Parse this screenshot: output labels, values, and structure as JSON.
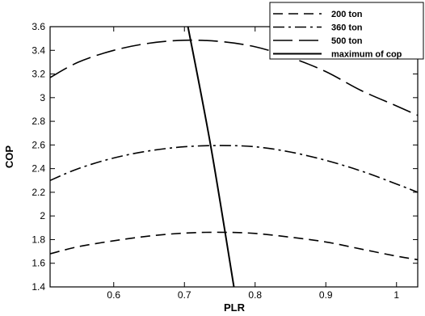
{
  "chart_data": {
    "type": "line",
    "title": "",
    "xlabel": "PLR",
    "ylabel": "COP",
    "xlim": [
      0.51,
      1.03
    ],
    "ylim": [
      1.4,
      3.6
    ],
    "xticks": [
      0.6,
      0.7,
      0.8,
      0.9,
      1
    ],
    "xtick_labels": [
      "0.6",
      "0.7",
      "0.8",
      "0.9",
      "1"
    ],
    "yticks": [
      1.4,
      1.6,
      1.8,
      2,
      2.2,
      2.4,
      2.6,
      2.8,
      3,
      3.2,
      3.4,
      3.6
    ],
    "ytick_labels": [
      "1.4",
      "1.6",
      "1.8",
      "2",
      "2.2",
      "2.4",
      "2.6",
      "2.8",
      "3",
      "3.2",
      "3.4",
      "3.6"
    ],
    "grid": false,
    "legend_position": "top-right",
    "series": [
      {
        "name": "200 ton",
        "style": "dashed",
        "color": "#000000",
        "x": [
          0.51,
          0.55,
          0.6,
          0.65,
          0.7,
          0.75,
          0.8,
          0.85,
          0.9,
          0.95,
          1.0,
          1.03
        ],
        "y": [
          1.68,
          1.74,
          1.79,
          1.83,
          1.855,
          1.862,
          1.852,
          1.82,
          1.78,
          1.72,
          1.66,
          1.63
        ]
      },
      {
        "name": "360 ton",
        "style": "dashdot",
        "color": "#000000",
        "x": [
          0.51,
          0.55,
          0.6,
          0.65,
          0.7,
          0.75,
          0.8,
          0.85,
          0.9,
          0.95,
          1.0,
          1.03
        ],
        "y": [
          2.3,
          2.4,
          2.49,
          2.55,
          2.585,
          2.595,
          2.585,
          2.54,
          2.47,
          2.38,
          2.27,
          2.2
        ]
      },
      {
        "name": "500 ton",
        "style": "longdash",
        "color": "#000000",
        "x": [
          0.51,
          0.55,
          0.6,
          0.65,
          0.7,
          0.75,
          0.8,
          0.85,
          0.9,
          0.95,
          1.0,
          1.03
        ],
        "y": [
          3.17,
          3.3,
          3.4,
          3.46,
          3.485,
          3.475,
          3.43,
          3.34,
          3.22,
          3.06,
          2.93,
          2.85
        ]
      },
      {
        "name": "maximum of cop",
        "style": "solid",
        "color": "#000000",
        "x": [
          0.705,
          0.737,
          0.77
        ],
        "y": [
          3.6,
          2.6,
          1.4
        ]
      }
    ]
  }
}
